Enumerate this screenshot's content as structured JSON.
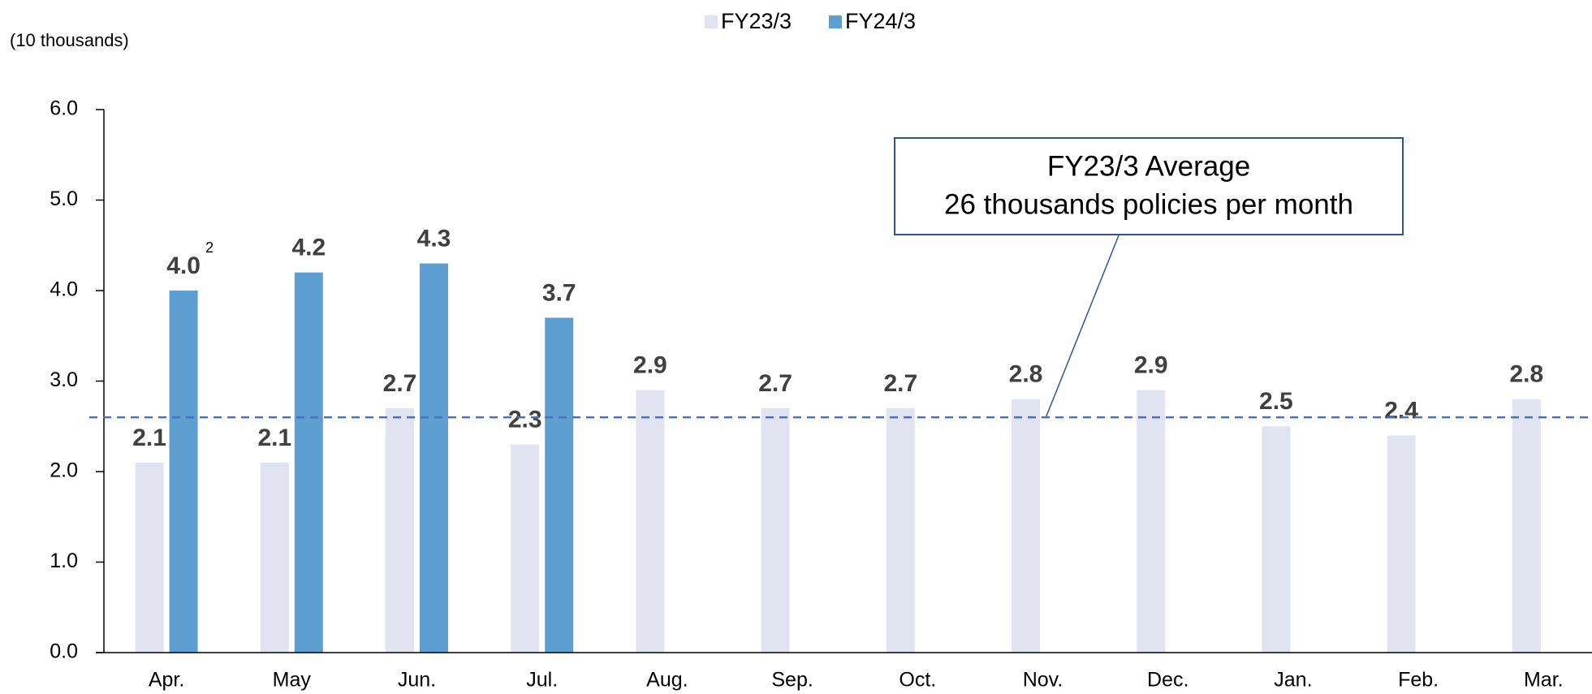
{
  "chart_data": {
    "type": "bar",
    "unit_label": "(10 thousands)",
    "categories": [
      "Apr.",
      "May",
      "Jun.",
      "Jul.",
      "Aug.",
      "Sep.",
      "Oct.",
      "Nov.",
      "Dec.",
      "Jan.",
      "Feb.",
      "Mar."
    ],
    "series": [
      {
        "name": "FY23/3",
        "color": "#e1e3f1",
        "values": [
          2.1,
          2.1,
          2.7,
          2.3,
          2.9,
          2.7,
          2.7,
          2.8,
          2.9,
          2.5,
          2.4,
          2.8
        ],
        "value_labels": [
          "2.1",
          "2.1",
          "2.7",
          "2.3",
          "2.9",
          "2.7",
          "2.7",
          "2.8",
          "2.9",
          "2.5",
          "2.4",
          "2.8"
        ]
      },
      {
        "name": "FY24/3",
        "color": "#5f9ed1",
        "values": [
          4.0,
          4.2,
          4.3,
          3.7,
          null,
          null,
          null,
          null,
          null,
          null,
          null,
          null
        ],
        "value_labels": [
          "4.0",
          "4.2",
          "4.3",
          "3.7",
          null,
          null,
          null,
          null,
          null,
          null,
          null,
          null
        ],
        "note_marks": [
          "2",
          null,
          null,
          null,
          null,
          null,
          null,
          null,
          null,
          null,
          null,
          null
        ]
      }
    ],
    "ylim": [
      0,
      6
    ],
    "yticks": [
      {
        "value": 0,
        "label": "0.0"
      },
      {
        "value": 1,
        "label": "1.0"
      },
      {
        "value": 2,
        "label": "2.0"
      },
      {
        "value": 3,
        "label": "3.0"
      },
      {
        "value": 4,
        "label": "4.0"
      },
      {
        "value": 5,
        "label": "5.0"
      },
      {
        "value": 6,
        "label": "6.0"
      }
    ],
    "average_line": {
      "value": 2.6,
      "color": "#4472c4",
      "annotation": [
        "FY23/3 Average",
        "26 thousands policies per month"
      ]
    },
    "legend": "top"
  }
}
